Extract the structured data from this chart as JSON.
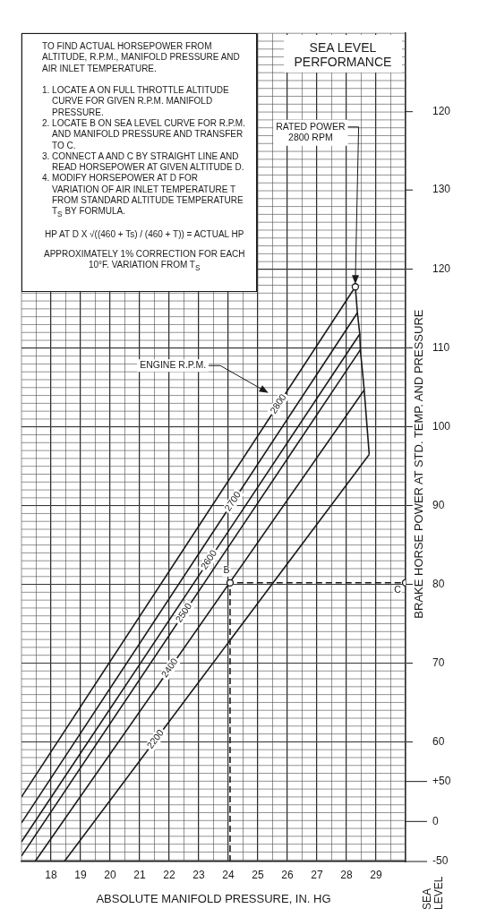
{
  "chart_data": {
    "type": "line",
    "title": "SEA LEVEL PERFORMANCE",
    "xlabel": "ABSOLUTE MANIFOLD PRESSURE, IN. HG",
    "ylabel": "BRAKE HORSE POWER AT STD. TEMP. AND PRESSURE",
    "xlim": [
      17,
      30
    ],
    "xticks": [
      18,
      19,
      20,
      21,
      22,
      23,
      24,
      25,
      26,
      27,
      28,
      29
    ],
    "ylim": [
      44.8,
      150
    ],
    "yticks": [
      60,
      70,
      80,
      90,
      100,
      110,
      120
    ],
    "y2lim": [
      -50,
      985
    ],
    "y2ticks": [
      -50,
      0,
      {
        "value": 50,
        "label": "+50"
      }
    ],
    "y3lim": [
      215.7,
      110
    ],
    "y3ticks": [
      130,
      120
    ],
    "grid": true,
    "series": [
      {
        "name": "2800",
        "color": "#1a1a1a",
        "x": [
          17,
          28.3
        ],
        "values": [
          53,
          117.8
        ]
      },
      {
        "name": "2700",
        "color": "#1a1a1a",
        "x": [
          17,
          28.37
        ],
        "values": [
          49.7,
          114.5
        ]
      },
      {
        "name": "2600",
        "color": "#1a1a1a",
        "x": [
          17,
          28.45
        ],
        "values": [
          47.3,
          111.8
        ]
      },
      {
        "name": "2500",
        "color": "#1a1a1a",
        "x": [
          17,
          28.47
        ],
        "values": [
          45.5,
          109.8
        ]
      },
      {
        "name": "2400",
        "color": "#1a1a1a",
        "x": [
          17.46,
          28.6
        ],
        "values": [
          44.8,
          104.7
        ]
      },
      {
        "name": "2200",
        "color": "#1a1a1a",
        "x": [
          18.45,
          28.77
        ],
        "values": [
          44.8,
          96.5
        ]
      },
      {
        "color": "#1a1a1a",
        "x": [
          28.3,
          28.37,
          28.45,
          28.47,
          28.6,
          28.77
        ],
        "values": [
          117.8,
          114.5,
          111.8,
          109.8,
          104.7,
          96.5
        ]
      },
      {
        "color": "#1a1a1a",
        "line_style": "dashed",
        "x": [
          24.06,
          24.06,
          30
        ],
        "values": [
          44.8,
          80.2,
          80.2
        ]
      },
      {
        "type": "scatter",
        "marker": "circle",
        "color": "#1a1a1a",
        "x": [
          28.3,
          24.06,
          30
        ],
        "values": [
          117.8,
          80.2,
          80.2
        ]
      }
    ],
    "annotations": [
      "TO FIND ACTUAL HORSEPOWER FROM ALTITUDE, R.P.M., MANIFOLD PRESSURE AND AIR INLET TEMPERATURE.",
      "1. LOCATE A ON FULL THROTTLE ALTITUDE CURVE FOR GIVEN R.P.M. MANIFOLD PRESSURE.",
      "2. LOCATE B ON SEA LEVEL CURVE FOR R.P.M. AND MANIFOLD PRESSURE AND TRANSFER TO C.",
      "3. CONNECT A AND C BY STRAIGHT LINE AND READ HORSEPOWER AT GIVEN ALTITUDE D.",
      "4. MODIFY HORSEPOWER AT D FOR VARIATION OF AIR INLET TEMPERATURE T FROM STANDARD ALTITUDE TEMPERATURE T$_{S}$ BY FORMULA.",
      "HP AT D X √((460 + Ts) / (460 + T)) = ACTUAL HP",
      "APPROXIMATELY 1% CORRECTION FOR EACH 10°F. VARIATION FROM T$_{S}$",
      "SEA LEVEL",
      "ENGINE R.P.M.",
      {
        "text": "RATED POWER 2800 RPM",
        "x": 28.3,
        "y": 117.8
      },
      {
        "text": "B",
        "x": 24.06,
        "y": 80.2
      },
      {
        "text": "C",
        "x": 30,
        "y": 80.2
      }
    ]
  }
}
